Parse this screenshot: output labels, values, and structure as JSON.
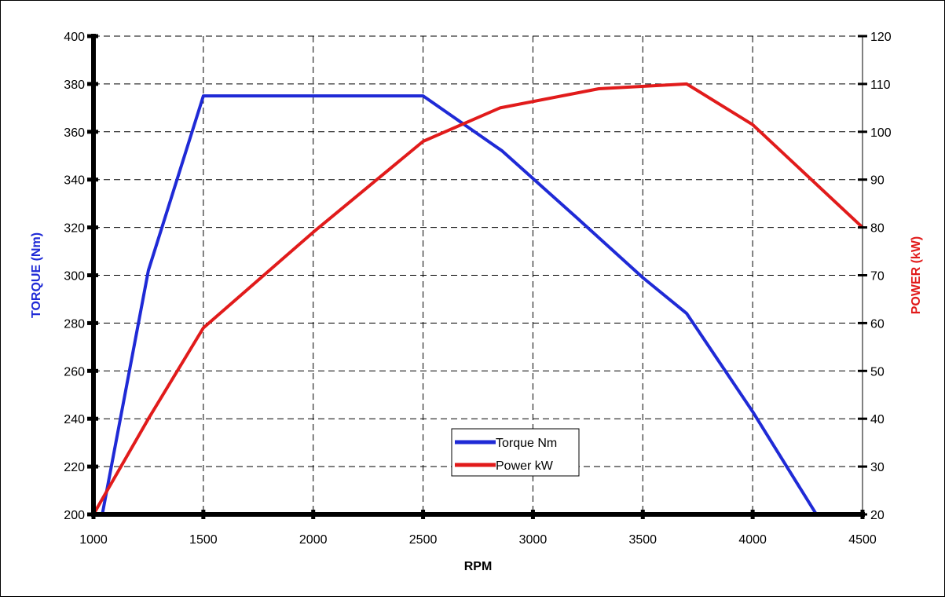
{
  "chart_data": {
    "type": "line",
    "xlabel": "RPM",
    "ylabel_left": "TORQUE (Nm)",
    "ylabel_right": "POWER (kW)",
    "xlim": [
      1000,
      4500
    ],
    "ylim_left": [
      200,
      400
    ],
    "ylim_right": [
      20,
      120
    ],
    "x_ticks": [
      1000,
      1500,
      2000,
      2500,
      3000,
      3500,
      4000,
      4500
    ],
    "y_left_ticks": [
      200,
      220,
      240,
      260,
      280,
      300,
      320,
      340,
      360,
      380,
      400
    ],
    "y_right_ticks": [
      20,
      30,
      40,
      50,
      60,
      70,
      80,
      90,
      100,
      110,
      120
    ],
    "grid": true,
    "legend": {
      "placement": "center-bottom"
    },
    "series": [
      {
        "name": "Torque Nm",
        "axis": "left",
        "color": "#1f2ad6",
        "points": [
          [
            1040,
            200
          ],
          [
            1250,
            302
          ],
          [
            1500,
            375
          ],
          [
            2500,
            375
          ],
          [
            2860,
            352
          ],
          [
            3200,
            324
          ],
          [
            3500,
            299
          ],
          [
            3700,
            284
          ],
          [
            4000,
            243
          ],
          [
            4290,
            200
          ]
        ]
      },
      {
        "name": "Power kW",
        "axis": "right",
        "color": "#e11b1b",
        "points": [
          [
            1000,
            20
          ],
          [
            1250,
            40
          ],
          [
            1500,
            59
          ],
          [
            2000,
            79
          ],
          [
            2500,
            98
          ],
          [
            2850,
            105
          ],
          [
            3300,
            109
          ],
          [
            3700,
            110
          ],
          [
            4000,
            101.5
          ],
          [
            4500,
            80
          ]
        ]
      }
    ]
  }
}
